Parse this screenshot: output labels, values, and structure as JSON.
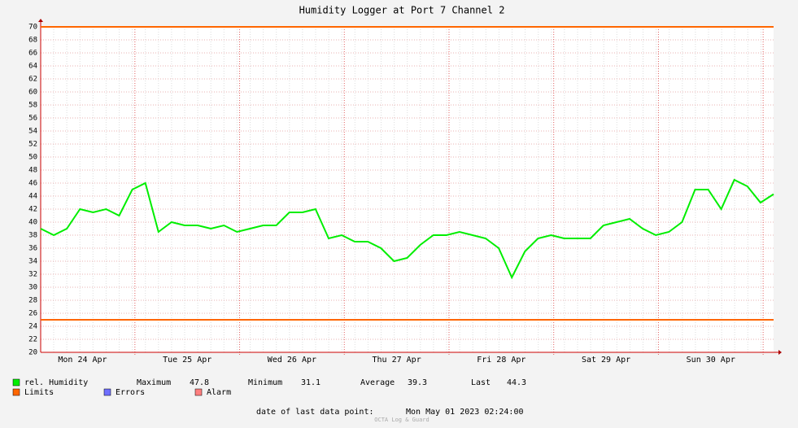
{
  "chart_data": {
    "type": "line",
    "title": "Humidity Logger at Port 7 Channel 2",
    "x": [
      "2023-04-24T02:24",
      "2023-04-24T05:24",
      "2023-04-24T08:24",
      "2023-04-24T11:24",
      "2023-04-24T14:24",
      "2023-04-24T17:24",
      "2023-04-24T20:24",
      "2023-04-24T23:24",
      "2023-04-25T02:24",
      "2023-04-25T05:24",
      "2023-04-25T08:24",
      "2023-04-25T11:24",
      "2023-04-25T14:24",
      "2023-04-25T17:24",
      "2023-04-25T20:24",
      "2023-04-25T23:24",
      "2023-04-26T02:24",
      "2023-04-26T05:24",
      "2023-04-26T08:24",
      "2023-04-26T11:24",
      "2023-04-26T14:24",
      "2023-04-26T17:24",
      "2023-04-26T20:24",
      "2023-04-26T23:24",
      "2023-04-27T02:24",
      "2023-04-27T05:24",
      "2023-04-27T08:24",
      "2023-04-27T11:24",
      "2023-04-27T14:24",
      "2023-04-27T17:24",
      "2023-04-27T20:24",
      "2023-04-27T23:24",
      "2023-04-28T02:24",
      "2023-04-28T05:24",
      "2023-04-28T08:24",
      "2023-04-28T11:24",
      "2023-04-28T14:24",
      "2023-04-28T17:24",
      "2023-04-28T20:24",
      "2023-04-28T23:24",
      "2023-04-29T02:24",
      "2023-04-29T05:24",
      "2023-04-29T08:24",
      "2023-04-29T11:24",
      "2023-04-29T14:24",
      "2023-04-29T17:24",
      "2023-04-29T20:24",
      "2023-04-29T23:24",
      "2023-04-30T02:24",
      "2023-04-30T05:24",
      "2023-04-30T08:24",
      "2023-04-30T11:24",
      "2023-04-30T14:24",
      "2023-04-30T17:24",
      "2023-04-30T20:24",
      "2023-04-30T23:24",
      "2023-05-01T02:24"
    ],
    "series": [
      {
        "name": "rel. Humidity",
        "color": "#00ee00",
        "values": [
          39,
          38,
          39,
          42,
          41.5,
          42,
          41,
          45,
          46,
          38.5,
          40,
          39.5,
          39.5,
          39,
          39.5,
          38.5,
          39,
          39.5,
          39.5,
          41.5,
          41.5,
          42,
          37.5,
          38,
          37,
          37,
          36,
          34,
          34.5,
          36.5,
          38,
          38,
          38.5,
          38,
          37.5,
          36,
          31.5,
          35.5,
          37.5,
          38,
          37.5,
          37.5,
          37.5,
          39.5,
          40,
          40.5,
          39,
          38,
          38.5,
          40,
          45,
          45,
          42,
          46.5,
          45.5,
          43,
          44.3
        ]
      }
    ],
    "limits": {
      "name": "Limits",
      "color": "#ff6600",
      "values": [
        25,
        70
      ]
    },
    "extra_legend": [
      {
        "name": "Errors",
        "color": "#6f6fff"
      },
      {
        "name": "Alarm",
        "color": "#ff7f7f"
      }
    ],
    "stats": [
      {
        "label": "Maximum",
        "value": "47.8"
      },
      {
        "label": "Minimum",
        "value": "31.1"
      },
      {
        "label": "Average",
        "value": "39.3"
      },
      {
        "label": "Last",
        "value": "44.3"
      }
    ],
    "xlim": [
      "2023-04-24T02:24",
      "2023-05-01T02:24"
    ],
    "xticks": [
      {
        "value": "2023-04-24T12:00",
        "label": "Mon 24 Apr"
      },
      {
        "value": "2023-04-25T12:00",
        "label": "Tue 25 Apr"
      },
      {
        "value": "2023-04-26T12:00",
        "label": "Wed 26 Apr"
      },
      {
        "value": "2023-04-27T12:00",
        "label": "Thu 27 Apr"
      },
      {
        "value": "2023-04-28T12:00",
        "label": "Fri 28 Apr"
      },
      {
        "value": "2023-04-29T12:00",
        "label": "Sat 29 Apr"
      },
      {
        "value": "2023-04-30T12:00",
        "label": "Sun 30 Apr"
      }
    ],
    "xgrid": [
      "2023-04-25T00:00",
      "2023-04-26T00:00",
      "2023-04-27T00:00",
      "2023-04-28T00:00",
      "2023-04-29T00:00",
      "2023-04-30T00:00",
      "2023-05-01T00:00"
    ],
    "ylim": [
      20,
      70
    ],
    "yticks": [
      20,
      22,
      24,
      26,
      28,
      30,
      32,
      34,
      36,
      38,
      40,
      42,
      44,
      46,
      48,
      50,
      52,
      54,
      56,
      58,
      60,
      62,
      64,
      66,
      68,
      70
    ],
    "grid": true,
    "footer_label": "date of last data point:",
    "footer_value": "Mon May 01 2023 02:24:00",
    "watermark": "OCTA Log & Guard"
  }
}
